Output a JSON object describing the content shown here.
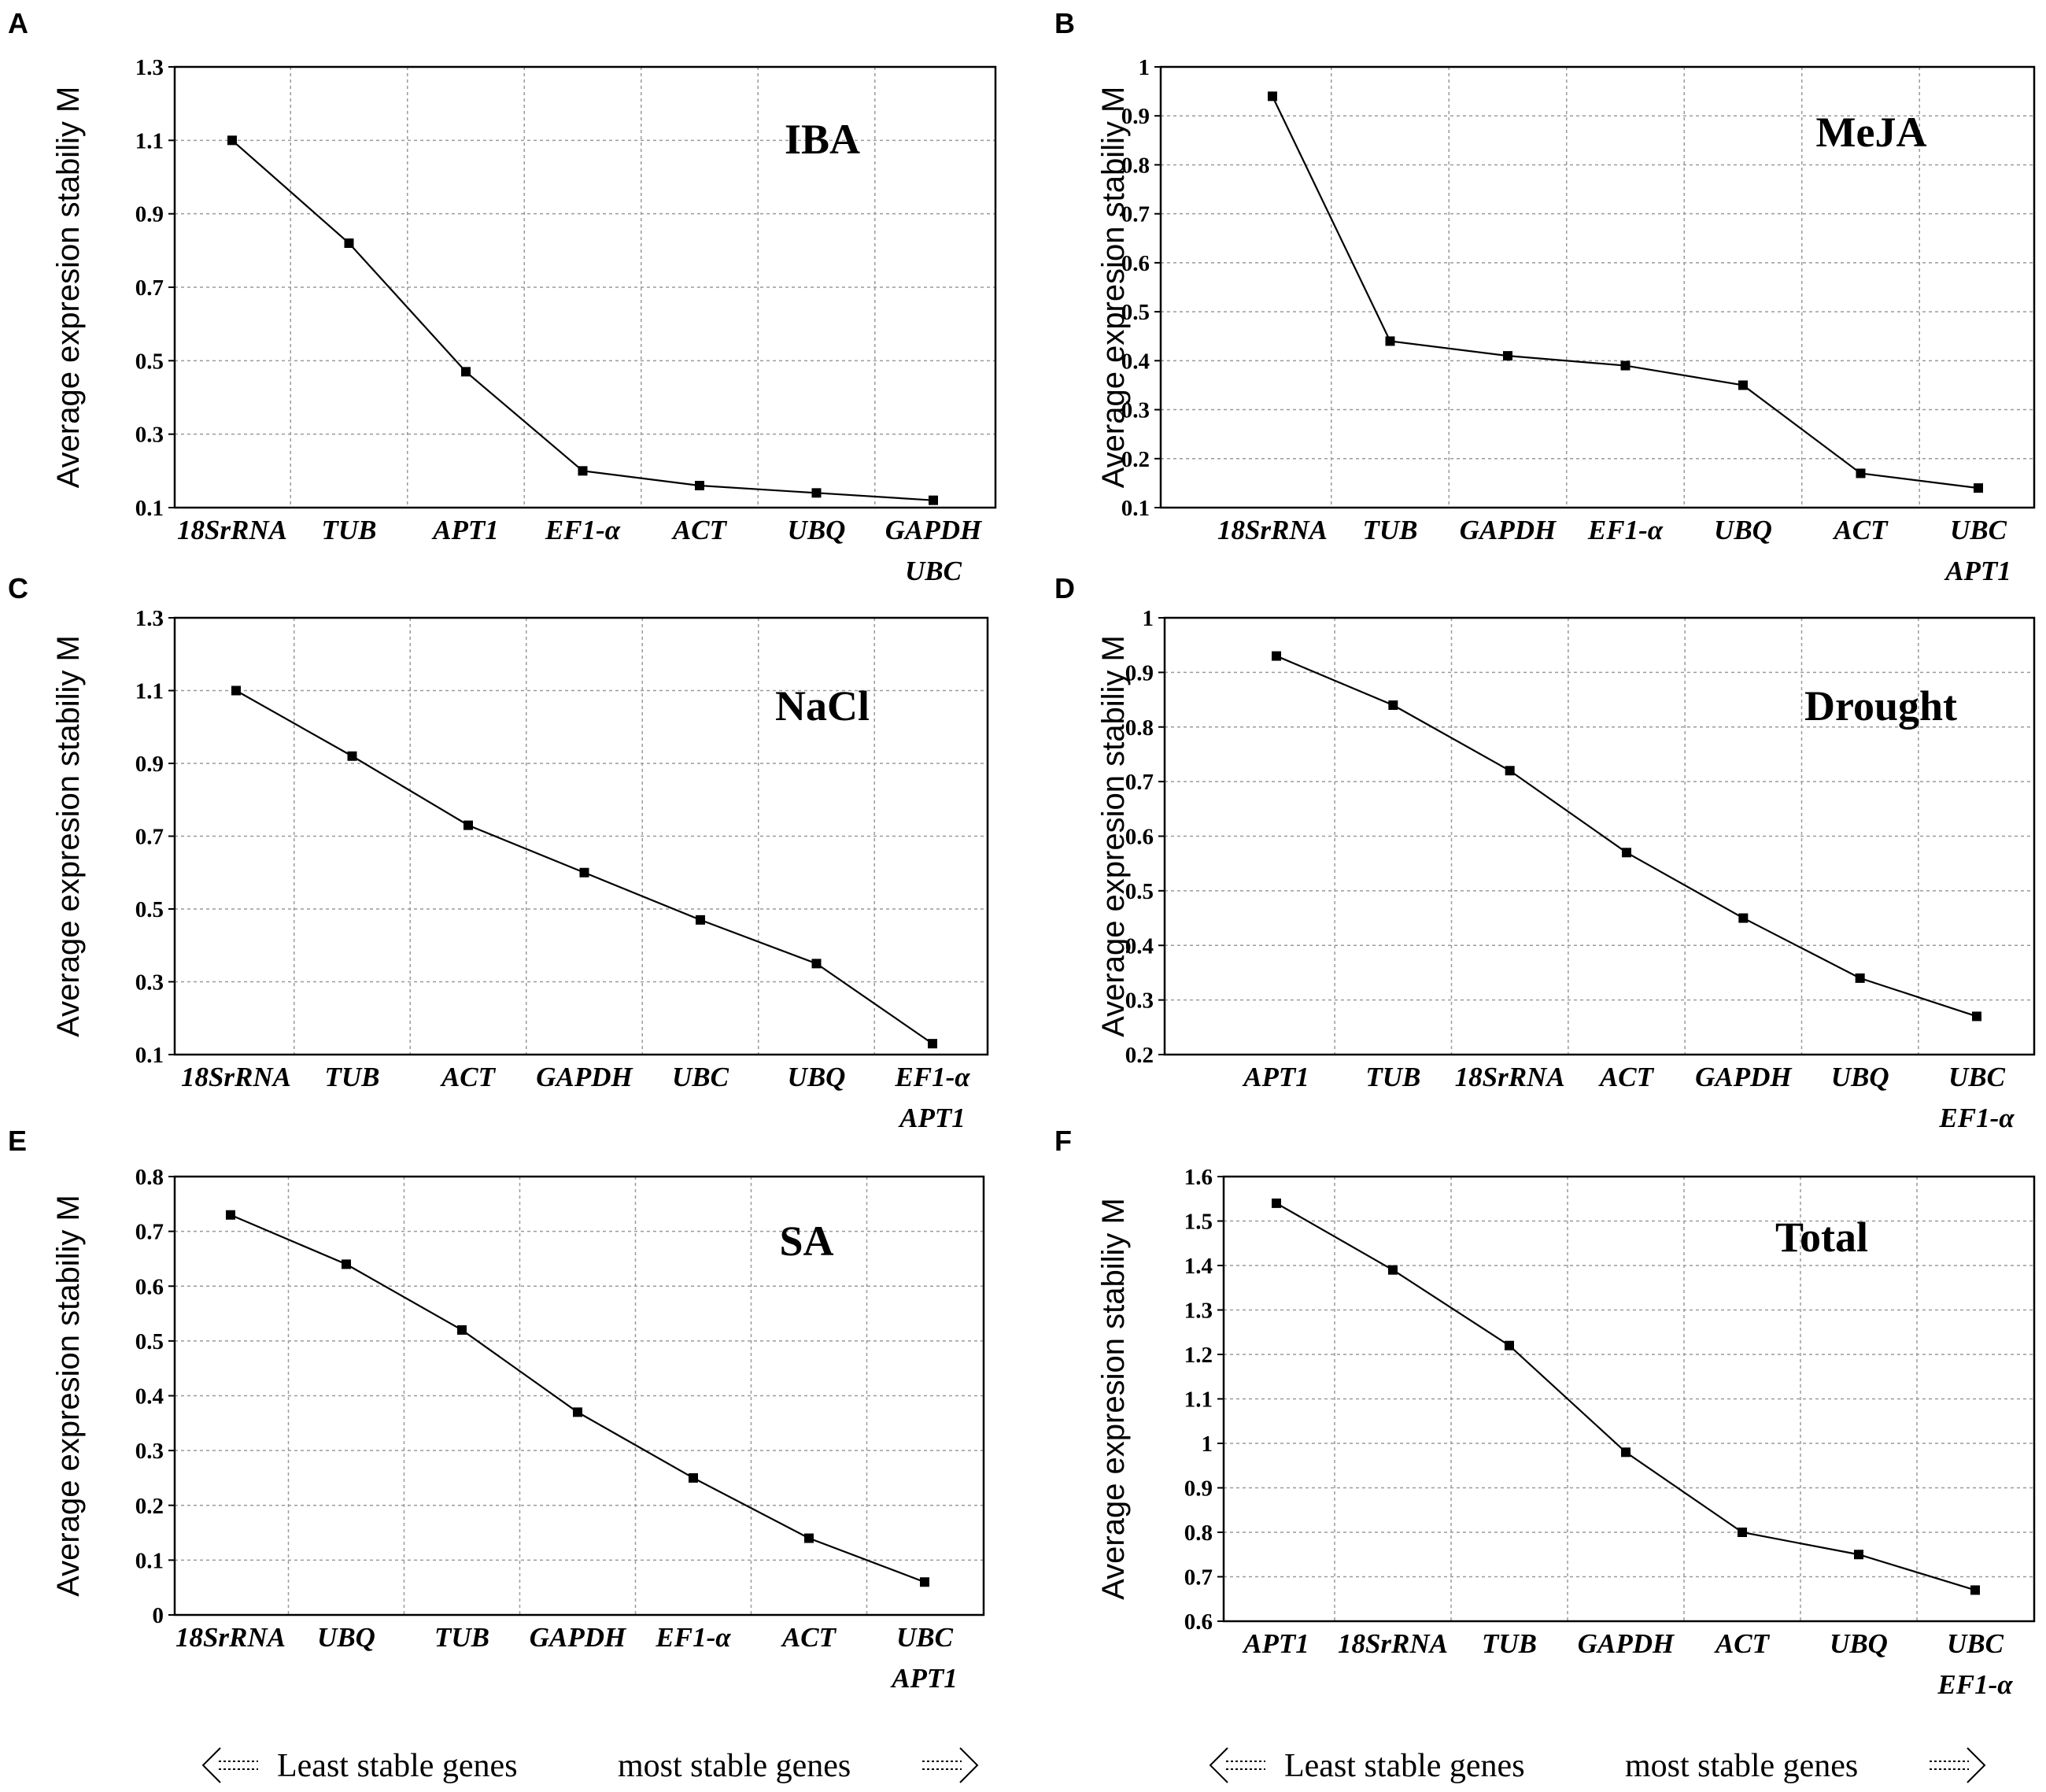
{
  "chart_data": [
    {
      "type": "line",
      "panel": "A",
      "title": "IBA",
      "ylabel": "Average expresion stabiliy M",
      "categories": [
        "18SrRNA",
        "TUB",
        "APT1",
        "EF1-α",
        "ACT",
        "UBQ",
        "GAPDH\nUBC"
      ],
      "values": [
        1.1,
        0.82,
        0.47,
        0.2,
        0.16,
        0.14,
        0.12
      ],
      "ylim": [
        0.1,
        1.3
      ],
      "yticks": [
        "0.1",
        "0.3",
        "0.5",
        "0.7",
        "0.9",
        "1.1",
        "1.3"
      ],
      "ytick_values": [
        0.1,
        0.3,
        0.5,
        0.7,
        0.9,
        1.1,
        1.3
      ]
    },
    {
      "type": "line",
      "panel": "B",
      "title": "MeJA",
      "ylabel": "Average expresion stabiliy M",
      "categories": [
        "18SrRNA",
        "TUB",
        "GAPDH",
        "EF1-α",
        "UBQ",
        "ACT",
        "UBC\nAPT1"
      ],
      "values": [
        0.94,
        0.44,
        0.41,
        0.39,
        0.35,
        0.17,
        0.14
      ],
      "ylim": [
        0.1,
        1.0
      ],
      "yticks": [
        "0.1",
        "0.2",
        "0.3",
        "0.4",
        "0.5",
        "0.6",
        "0.7",
        "0.8",
        "0.9",
        "1"
      ],
      "ytick_values": [
        0.1,
        0.2,
        0.3,
        0.4,
        0.5,
        0.6,
        0.7,
        0.8,
        0.9,
        1.0
      ]
    },
    {
      "type": "line",
      "panel": "C",
      "title": "NaCl",
      "ylabel": "Average expresion stabiliy M",
      "categories": [
        "18SrRNA",
        "TUB",
        "ACT",
        "GAPDH",
        "UBC",
        "UBQ",
        "EF1-α\nAPT1"
      ],
      "values": [
        1.1,
        0.92,
        0.73,
        0.6,
        0.47,
        0.35,
        0.13
      ],
      "ylim": [
        0.1,
        1.3
      ],
      "yticks": [
        "0.1",
        "0.3",
        "0.5",
        "0.7",
        "0.9",
        "1.1",
        "1.3"
      ],
      "ytick_values": [
        0.1,
        0.3,
        0.5,
        0.7,
        0.9,
        1.1,
        1.3
      ]
    },
    {
      "type": "line",
      "panel": "D",
      "title": "Drought",
      "ylabel": "Average expresion stabiliy M",
      "categories": [
        "APT1",
        "TUB",
        "18SrRNA",
        "ACT",
        "GAPDH",
        "UBQ",
        "UBC\nEF1-α"
      ],
      "values": [
        0.93,
        0.84,
        0.72,
        0.57,
        0.45,
        0.34,
        0.27
      ],
      "ylim": [
        0.2,
        1.0
      ],
      "yticks": [
        "0.2",
        "0.3",
        "0.4",
        "0.5",
        "0.6",
        "0.7",
        "0.8",
        "0.9",
        "1"
      ],
      "ytick_values": [
        0.2,
        0.3,
        0.4,
        0.5,
        0.6,
        0.7,
        0.8,
        0.9,
        1.0
      ]
    },
    {
      "type": "line",
      "panel": "E",
      "title": "SA",
      "ylabel": "Average expresion stabiliy M",
      "categories": [
        "18SrRNA",
        "UBQ",
        "TUB",
        "GAPDH",
        "EF1-α",
        "ACT",
        "UBC\nAPT1"
      ],
      "values": [
        0.73,
        0.64,
        0.52,
        0.37,
        0.25,
        0.14,
        0.06
      ],
      "ylim": [
        0,
        0.8
      ],
      "yticks": [
        "0",
        "0.1",
        "0.2",
        "0.3",
        "0.4",
        "0.5",
        "0.6",
        "0.7",
        "0.8"
      ],
      "ytick_values": [
        0,
        0.1,
        0.2,
        0.3,
        0.4,
        0.5,
        0.6,
        0.7,
        0.8
      ]
    },
    {
      "type": "line",
      "panel": "F",
      "title": "Total",
      "ylabel": "Average expresion stabiliy M",
      "categories": [
        "APT1",
        "18SrRNA",
        "TUB",
        "GAPDH",
        "ACT",
        "UBQ",
        "UBC\nEF1-α"
      ],
      "values": [
        1.54,
        1.39,
        1.22,
        0.98,
        0.8,
        0.75,
        0.67
      ],
      "ylim": [
        0.6,
        1.6
      ],
      "yticks": [
        "0.6",
        "0.7",
        "0.8",
        "0.9",
        "1",
        "1.1",
        "1.2",
        "1.3",
        "1.4",
        "1.5",
        "1.6"
      ],
      "ytick_values": [
        0.6,
        0.7,
        0.8,
        0.9,
        1.0,
        1.1,
        1.2,
        1.3,
        1.4,
        1.5,
        1.6
      ]
    }
  ],
  "footer": {
    "left_label": "Least stable genes",
    "right_label": "most stable genes"
  }
}
